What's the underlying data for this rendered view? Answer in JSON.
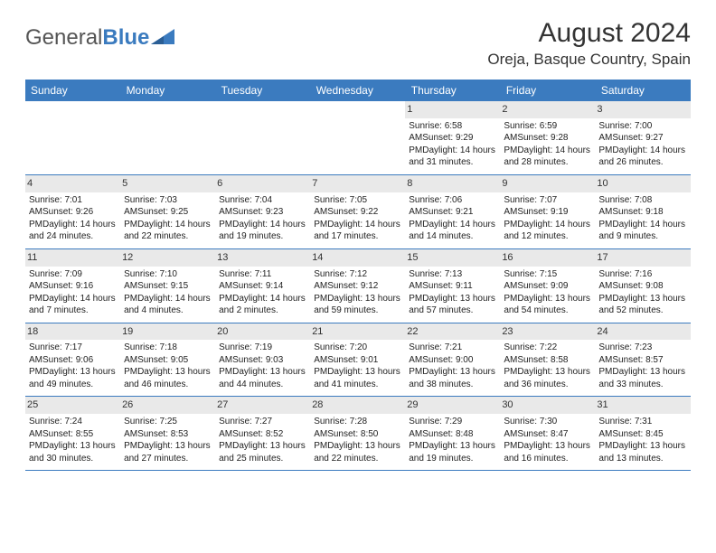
{
  "logo": {
    "part1": "General",
    "part2": "Blue"
  },
  "title": "August 2024",
  "location": "Oreja, Basque Country, Spain",
  "colors": {
    "header_bg": "#3b7bbf",
    "shade": "#e9e9e9",
    "text": "#222222",
    "border": "#3b7bbf"
  },
  "weekdays": [
    "Sunday",
    "Monday",
    "Tuesday",
    "Wednesday",
    "Thursday",
    "Friday",
    "Saturday"
  ],
  "weeks": [
    [
      null,
      null,
      null,
      null,
      {
        "n": "1",
        "sr": "6:58 AM",
        "ss": "9:29 PM",
        "dl": "14 hours and 31 minutes."
      },
      {
        "n": "2",
        "sr": "6:59 AM",
        "ss": "9:28 PM",
        "dl": "14 hours and 28 minutes."
      },
      {
        "n": "3",
        "sr": "7:00 AM",
        "ss": "9:27 PM",
        "dl": "14 hours and 26 minutes."
      }
    ],
    [
      {
        "n": "4",
        "sr": "7:01 AM",
        "ss": "9:26 PM",
        "dl": "14 hours and 24 minutes."
      },
      {
        "n": "5",
        "sr": "7:03 AM",
        "ss": "9:25 PM",
        "dl": "14 hours and 22 minutes."
      },
      {
        "n": "6",
        "sr": "7:04 AM",
        "ss": "9:23 PM",
        "dl": "14 hours and 19 minutes."
      },
      {
        "n": "7",
        "sr": "7:05 AM",
        "ss": "9:22 PM",
        "dl": "14 hours and 17 minutes."
      },
      {
        "n": "8",
        "sr": "7:06 AM",
        "ss": "9:21 PM",
        "dl": "14 hours and 14 minutes."
      },
      {
        "n": "9",
        "sr": "7:07 AM",
        "ss": "9:19 PM",
        "dl": "14 hours and 12 minutes."
      },
      {
        "n": "10",
        "sr": "7:08 AM",
        "ss": "9:18 PM",
        "dl": "14 hours and 9 minutes."
      }
    ],
    [
      {
        "n": "11",
        "sr": "7:09 AM",
        "ss": "9:16 PM",
        "dl": "14 hours and 7 minutes."
      },
      {
        "n": "12",
        "sr": "7:10 AM",
        "ss": "9:15 PM",
        "dl": "14 hours and 4 minutes."
      },
      {
        "n": "13",
        "sr": "7:11 AM",
        "ss": "9:14 PM",
        "dl": "14 hours and 2 minutes."
      },
      {
        "n": "14",
        "sr": "7:12 AM",
        "ss": "9:12 PM",
        "dl": "13 hours and 59 minutes."
      },
      {
        "n": "15",
        "sr": "7:13 AM",
        "ss": "9:11 PM",
        "dl": "13 hours and 57 minutes."
      },
      {
        "n": "16",
        "sr": "7:15 AM",
        "ss": "9:09 PM",
        "dl": "13 hours and 54 minutes."
      },
      {
        "n": "17",
        "sr": "7:16 AM",
        "ss": "9:08 PM",
        "dl": "13 hours and 52 minutes."
      }
    ],
    [
      {
        "n": "18",
        "sr": "7:17 AM",
        "ss": "9:06 PM",
        "dl": "13 hours and 49 minutes."
      },
      {
        "n": "19",
        "sr": "7:18 AM",
        "ss": "9:05 PM",
        "dl": "13 hours and 46 minutes."
      },
      {
        "n": "20",
        "sr": "7:19 AM",
        "ss": "9:03 PM",
        "dl": "13 hours and 44 minutes."
      },
      {
        "n": "21",
        "sr": "7:20 AM",
        "ss": "9:01 PM",
        "dl": "13 hours and 41 minutes."
      },
      {
        "n": "22",
        "sr": "7:21 AM",
        "ss": "9:00 PM",
        "dl": "13 hours and 38 minutes."
      },
      {
        "n": "23",
        "sr": "7:22 AM",
        "ss": "8:58 PM",
        "dl": "13 hours and 36 minutes."
      },
      {
        "n": "24",
        "sr": "7:23 AM",
        "ss": "8:57 PM",
        "dl": "13 hours and 33 minutes."
      }
    ],
    [
      {
        "n": "25",
        "sr": "7:24 AM",
        "ss": "8:55 PM",
        "dl": "13 hours and 30 minutes."
      },
      {
        "n": "26",
        "sr": "7:25 AM",
        "ss": "8:53 PM",
        "dl": "13 hours and 27 minutes."
      },
      {
        "n": "27",
        "sr": "7:27 AM",
        "ss": "8:52 PM",
        "dl": "13 hours and 25 minutes."
      },
      {
        "n": "28",
        "sr": "7:28 AM",
        "ss": "8:50 PM",
        "dl": "13 hours and 22 minutes."
      },
      {
        "n": "29",
        "sr": "7:29 AM",
        "ss": "8:48 PM",
        "dl": "13 hours and 19 minutes."
      },
      {
        "n": "30",
        "sr": "7:30 AM",
        "ss": "8:47 PM",
        "dl": "13 hours and 16 minutes."
      },
      {
        "n": "31",
        "sr": "7:31 AM",
        "ss": "8:45 PM",
        "dl": "13 hours and 13 minutes."
      }
    ]
  ],
  "labels": {
    "sunrise": "Sunrise: ",
    "sunset": "Sunset: ",
    "daylight": "Daylight: "
  }
}
